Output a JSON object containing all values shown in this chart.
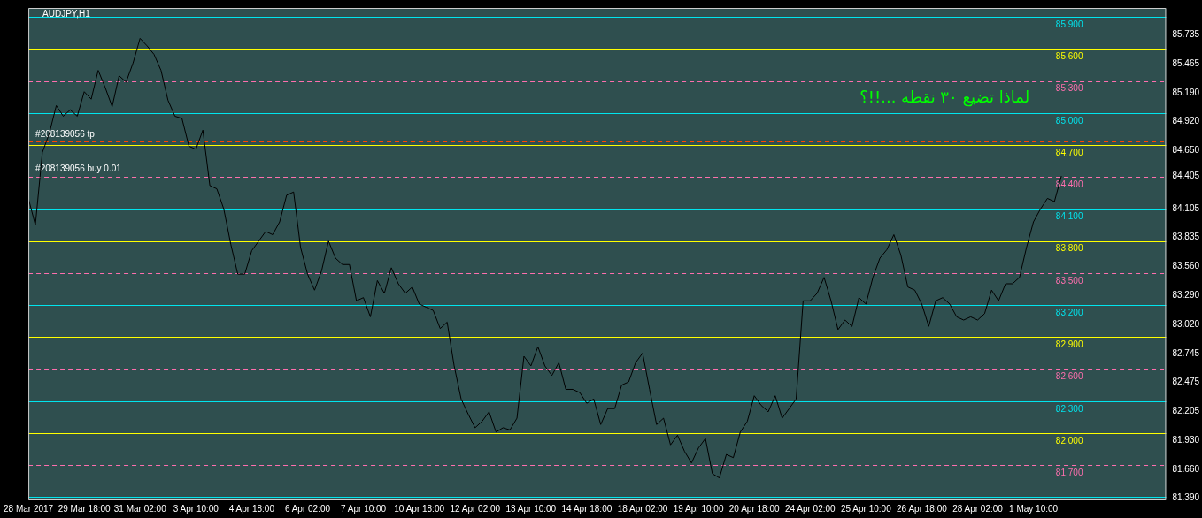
{
  "chart_data": {
    "type": "line",
    "title": "AUDJPY,H1",
    "categories": [
      "28 Mar 2017",
      null,
      null,
      null,
      null,
      null,
      null,
      null,
      "29 Mar 18:00",
      null,
      null,
      null,
      null,
      null,
      null,
      null,
      "31 Mar 02:00",
      null,
      null,
      null,
      null,
      null,
      null,
      null,
      "3 Apr 10:00",
      null,
      null,
      null,
      null,
      null,
      null,
      null,
      "4 Apr 18:00",
      null,
      null,
      null,
      null,
      null,
      null,
      null,
      "6 Apr 02:00",
      null,
      null,
      null,
      null,
      null,
      null,
      null,
      "7 Apr 10:00",
      null,
      null,
      null,
      null,
      null,
      null,
      null,
      "10 Apr 18:00",
      null,
      null,
      null,
      null,
      null,
      null,
      null,
      "12 Apr 02:00",
      null,
      null,
      null,
      null,
      null,
      null,
      null,
      "13 Apr 10:00",
      null,
      null,
      null,
      null,
      null,
      null,
      null,
      "14 Apr 18:00",
      null,
      null,
      null,
      null,
      null,
      null,
      null,
      "18 Apr 02:00",
      null,
      null,
      null,
      null,
      null,
      null,
      null,
      "19 Apr 10:00",
      null,
      null,
      null,
      null,
      null,
      null,
      null,
      "20 Apr 18:00",
      null,
      null,
      null,
      null,
      null,
      null,
      null,
      "24 Apr 02:00",
      null,
      null,
      null,
      null,
      null,
      null,
      null,
      "25 Apr 10:00",
      null,
      null,
      null,
      null,
      null,
      null,
      null,
      "26 Apr 18:00",
      null,
      null,
      null,
      null,
      null,
      null,
      null,
      "28 Apr 02:00",
      null,
      null,
      null,
      null,
      null,
      null,
      null,
      "1 May 10:00",
      null,
      null,
      null,
      null,
      null,
      null,
      null,
      null,
      null,
      null,
      null,
      null,
      null,
      null,
      null,
      null,
      null,
      null,
      null
    ],
    "series": [
      {
        "color": "#000000",
        "values": [
          84.2,
          83.95,
          84.63,
          84.81,
          85.07,
          84.97,
          85.03,
          84.97,
          85.2,
          85.13,
          85.4,
          85.24,
          85.06,
          85.35,
          85.29,
          85.47,
          85.7,
          85.63,
          85.55,
          85.4,
          85.12,
          84.97,
          84.95,
          84.69,
          84.66,
          84.84,
          84.32,
          84.29,
          84.1,
          83.77,
          83.49,
          83.49,
          83.71,
          83.8,
          83.89,
          83.86,
          83.98,
          84.23,
          84.26,
          83.74,
          83.49,
          83.34,
          83.52,
          83.8,
          83.64,
          83.58,
          83.58,
          83.24,
          83.27,
          83.09,
          83.43,
          83.31,
          83.55,
          83.4,
          83.31,
          83.37,
          83.21,
          83.18,
          83.15,
          82.98,
          83.04,
          82.63,
          82.32,
          82.18,
          82.05,
          82.11,
          82.2,
          82.01,
          82.05,
          82.03,
          82.14,
          82.72,
          82.63,
          82.81,
          82.63,
          82.54,
          82.66,
          82.41,
          82.41,
          82.38,
          82.28,
          82.32,
          82.08,
          82.23,
          82.23,
          82.45,
          82.48,
          82.66,
          82.75,
          82.41,
          82.08,
          82.14,
          81.89,
          81.98,
          81.83,
          81.72,
          81.86,
          81.95,
          81.62,
          81.58,
          81.8,
          81.77,
          82.01,
          82.11,
          82.35,
          82.26,
          82.2,
          82.35,
          82.14,
          82.23,
          82.32,
          83.24,
          83.24,
          83.31,
          83.46,
          83.24,
          82.97,
          83.06,
          83.0,
          83.27,
          83.21,
          83.46,
          83.64,
          83.72,
          83.86,
          83.67,
          83.37,
          83.34,
          83.21,
          83.0,
          83.24,
          83.27,
          83.21,
          83.09,
          83.06,
          83.09,
          83.06,
          83.12,
          83.34,
          83.24,
          83.4,
          83.4,
          83.46,
          83.74,
          83.98,
          84.1,
          84.2,
          84.17,
          84.41,
          null,
          null,
          null,
          null,
          null,
          null,
          null,
          null,
          null,
          null,
          null,
          null,
          null,
          null,
          null
        ]
      }
    ],
    "ylim": [
      81.37,
      85.985
    ],
    "yticks": [
      {
        "value": 85.735,
        "label": "85.735"
      },
      {
        "value": 85.465,
        "label": "85.465"
      },
      {
        "value": 85.19,
        "label": "85.190"
      },
      {
        "value": 84.92,
        "label": "84.920"
      },
      {
        "value": 84.65,
        "label": "84.650"
      },
      {
        "value": 84.405,
        "label": "84.405"
      },
      {
        "value": 84.105,
        "label": "84.105"
      },
      {
        "value": 83.835,
        "label": "83.835"
      },
      {
        "value": 83.56,
        "label": "83.560"
      },
      {
        "value": 83.29,
        "label": "83.290"
      },
      {
        "value": 83.02,
        "label": "83.020"
      },
      {
        "value": 82.745,
        "label": "82.745"
      },
      {
        "value": 82.475,
        "label": "82.475"
      },
      {
        "value": 82.205,
        "label": "82.205"
      },
      {
        "value": 81.93,
        "label": "81.930"
      },
      {
        "value": 81.66,
        "label": "81.660"
      },
      {
        "value": 81.39,
        "label": "81.390"
      }
    ],
    "grid": false,
    "legend": false,
    "marker": "none",
    "line_style": "solid",
    "ref_lines": [
      {
        "axis": "y",
        "value": 85.9,
        "label": "85.900",
        "color": "#00e5ee",
        "line_style": "solid"
      },
      {
        "axis": "y",
        "value": 85.6,
        "label": "85.600",
        "color": "#ffff00",
        "line_style": "solid"
      },
      {
        "axis": "y",
        "value": 85.3,
        "label": "85.300",
        "color": "#ff6fae",
        "line_style": "dashed"
      },
      {
        "axis": "y",
        "value": 85.0,
        "label": "85.000",
        "color": "#00e5ee",
        "line_style": "solid"
      },
      {
        "axis": "y",
        "value": 84.73,
        "label": "#208139056 tp",
        "color": "#ff4500",
        "line_style": "dashed"
      },
      {
        "axis": "y",
        "value": 84.7,
        "label": "84.700",
        "color": "#ffff00",
        "line_style": "solid"
      },
      {
        "axis": "y",
        "value": 84.405,
        "label": "#208139056 buy 0.01",
        "color": "#00ff00",
        "line_style": "dashed"
      },
      {
        "axis": "y",
        "value": 84.4,
        "label": "84.400",
        "color": "#ff6fae",
        "line_style": "dashed"
      },
      {
        "axis": "y",
        "value": 84.1,
        "label": "84.100",
        "color": "#00e5ee",
        "line_style": "solid"
      },
      {
        "axis": "y",
        "value": 83.8,
        "label": "83.800",
        "color": "#ffff00",
        "line_style": "solid"
      },
      {
        "axis": "y",
        "value": 83.5,
        "label": "83.500",
        "color": "#ff6fae",
        "line_style": "dashed"
      },
      {
        "axis": "y",
        "value": 83.2,
        "label": "83.200",
        "color": "#00e5ee",
        "line_style": "solid"
      },
      {
        "axis": "y",
        "value": 82.9,
        "label": "82.900",
        "color": "#ffff00",
        "line_style": "solid"
      },
      {
        "axis": "y",
        "value": 82.6,
        "label": "82.600",
        "color": "#ff6fae",
        "line_style": "dashed"
      },
      {
        "axis": "y",
        "value": 82.3,
        "label": "82.300",
        "color": "#00e5ee",
        "line_style": "solid"
      },
      {
        "axis": "y",
        "value": 82.0,
        "label": "82.000",
        "color": "#ffff00",
        "line_style": "solid"
      },
      {
        "axis": "y",
        "value": 81.7,
        "label": "81.700",
        "color": "#ff6fae",
        "line_style": "dashed"
      },
      {
        "axis": "y",
        "value": 81.4,
        "color": "#00e5ee",
        "line_style": "solid"
      }
    ],
    "annotations": [
      "لماذا تضيع ٣٠ نقطه ...!!؟"
    ]
  }
}
